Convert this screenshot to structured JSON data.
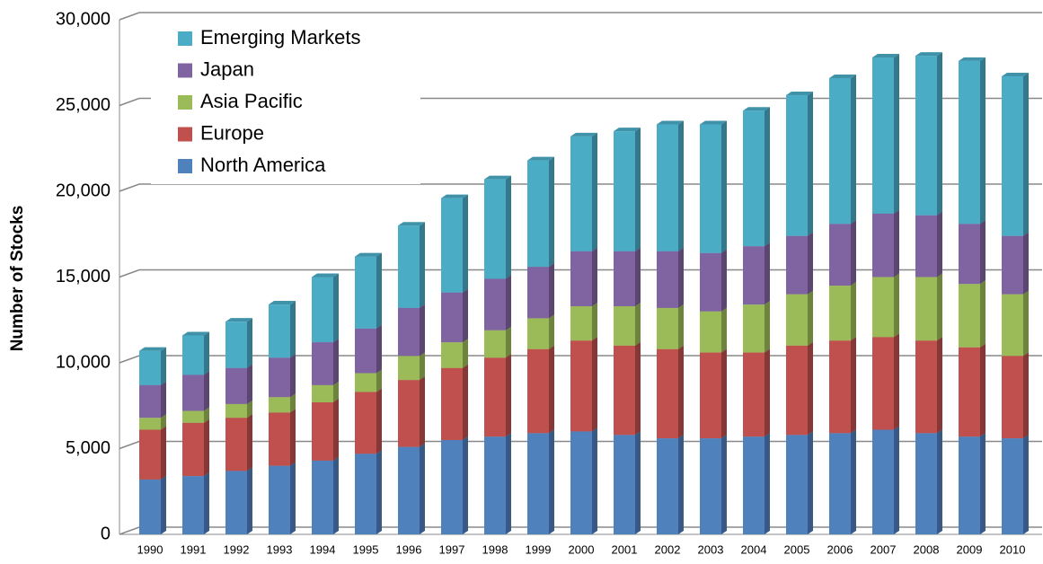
{
  "chart_data": {
    "type": "stacked_bar",
    "ylabel": "Number of Stocks",
    "categories": [
      "1990",
      "1991",
      "1992",
      "1993",
      "1994",
      "1995",
      "1996",
      "1997",
      "1998",
      "1999",
      "2000",
      "2001",
      "2002",
      "2003",
      "2004",
      "2005",
      "2006",
      "2007",
      "2008",
      "2009",
      "2010"
    ],
    "series": [
      {
        "name": "North America",
        "color": "#4f81bd",
        "values": [
          3200,
          3400,
          3700,
          4000,
          4300,
          4700,
          5100,
          5500,
          5700,
          5900,
          6000,
          5800,
          5600,
          5600,
          5700,
          5800,
          5900,
          6100,
          5900,
          5700,
          5600
        ]
      },
      {
        "name": "Europe",
        "color": "#c0504d",
        "values": [
          2900,
          3100,
          3100,
          3100,
          3400,
          3600,
          3900,
          4200,
          4600,
          4900,
          5300,
          5200,
          5200,
          5000,
          4900,
          5200,
          5400,
          5400,
          5400,
          5200,
          4800
        ]
      },
      {
        "name": "Asia Pacific",
        "color": "#9bbb59",
        "values": [
          700,
          700,
          800,
          900,
          1000,
          1100,
          1400,
          1500,
          1600,
          1800,
          2000,
          2300,
          2400,
          2400,
          2800,
          3000,
          3200,
          3500,
          3700,
          3700,
          3600
        ]
      },
      {
        "name": "Japan",
        "color": "#8064a2",
        "values": [
          1900,
          2100,
          2100,
          2300,
          2500,
          2600,
          2800,
          2900,
          3000,
          3000,
          3200,
          3200,
          3300,
          3400,
          3400,
          3400,
          3600,
          3700,
          3600,
          3500,
          3400
        ]
      },
      {
        "name": "Emerging Markets",
        "color": "#4bacc6",
        "values": [
          2000,
          2300,
          2700,
          3100,
          3800,
          4200,
          4800,
          5500,
          5800,
          6200,
          6700,
          7000,
          7400,
          7500,
          7900,
          8200,
          8500,
          9100,
          9300,
          9500,
          9300
        ]
      }
    ],
    "ylim": [
      0,
      30000
    ],
    "yticks": [
      0,
      {
        "value": 5000,
        "label": "5,000"
      },
      {
        "value": 10000,
        "label": "10,000"
      },
      {
        "value": 15000,
        "label": "15,000"
      },
      {
        "value": 20000,
        "label": "20,000"
      },
      {
        "value": 25000,
        "label": "25,000"
      },
      {
        "value": 30000,
        "label": "30,000"
      }
    ],
    "grid": true,
    "legend": "upper left"
  }
}
